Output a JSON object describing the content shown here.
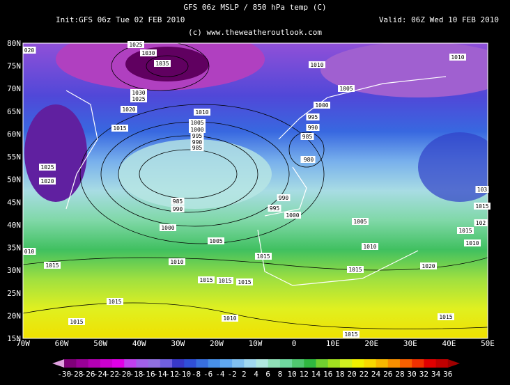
{
  "header": {
    "title": "GFS 06z MSLP / 850 hPa temp (C)",
    "init": "Init:GFS 06z Tue 02 FEB 2010",
    "valid": "Valid: 06Z Wed 10 FEB 2010",
    "credit": "(c) www.theweatheroutlook.com"
  },
  "lat_labels": [
    "80N",
    "75N",
    "70N",
    "65N",
    "60N",
    "55N",
    "50N",
    "45N",
    "40N",
    "35N",
    "30N",
    "25N",
    "20N",
    "15N"
  ],
  "lon_labels": [
    "70W",
    "60W",
    "50W",
    "40W",
    "30W",
    "20W",
    "10W",
    "0",
    "10E",
    "20E",
    "30E",
    "40E",
    "50E"
  ],
  "isobar_labels": [
    "020",
    "1025",
    "1030",
    "1035",
    "1010",
    "1010",
    "1005",
    "1030",
    "1025",
    "1020",
    "1010",
    "1000",
    "995",
    "990",
    "985",
    "1005",
    "1000",
    "995",
    "990",
    "985",
    "980",
    "1015",
    "1025",
    "1020",
    "980",
    "985",
    "990",
    "990",
    "995",
    "1000",
    "1005",
    "1000",
    "1005",
    "1010",
    "1010",
    "1015",
    "010",
    "1015",
    "1015",
    "1010",
    "1015",
    "1020",
    "1015",
    "1015",
    "1015",
    "1015",
    "1015",
    "1010",
    "1015",
    "1015",
    "103",
    "1015",
    "102"
  ],
  "colorbar": {
    "labels": [
      "-30",
      "-28",
      "-26",
      "-24",
      "-22",
      "-20",
      "-18",
      "-16",
      "-14",
      "-12",
      "-10",
      "-8",
      "-6",
      "-4",
      "-2",
      "2",
      "4",
      "6",
      "8",
      "10",
      "12",
      "14",
      "16",
      "18",
      "20",
      "22",
      "24",
      "26",
      "28",
      "30",
      "32",
      "34",
      "36"
    ],
    "colors": [
      "#e0a0e0",
      "#80007a",
      "#9a0098",
      "#b400b4",
      "#cc00d0",
      "#e000e8",
      "#c040f0",
      "#a060e8",
      "#9070e0",
      "#7060e0",
      "#3838c8",
      "#3050d8",
      "#3870e0",
      "#4890e8",
      "#60a8f0",
      "#80c0f0",
      "#a0d8f0",
      "#b0e8e0",
      "#90e0b8",
      "#70d8a0",
      "#50c870",
      "#30b840",
      "#70d030",
      "#a0e020",
      "#d0f020",
      "#f0f000",
      "#f8d800",
      "#f8b800",
      "#f89000",
      "#f86000",
      "#f03000",
      "#e00000",
      "#c00000",
      "#a00000"
    ]
  }
}
